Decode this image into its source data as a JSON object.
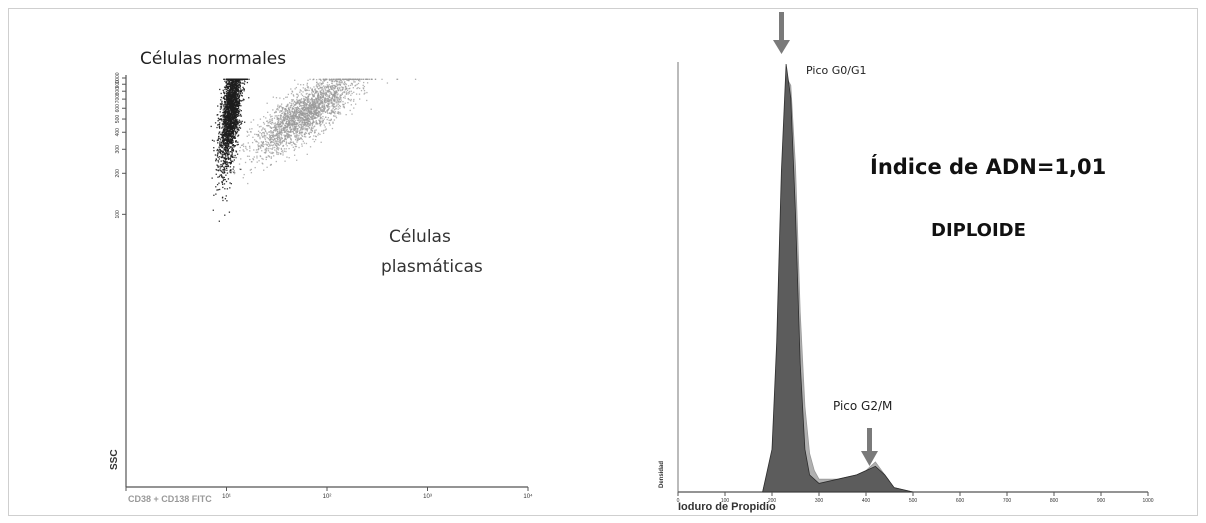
{
  "chart_data": [
    {
      "type": "scatter",
      "title": "",
      "xlabel": "CD38 + CD138 FITC",
      "ylabel": "SSC",
      "x_scale": "log",
      "y_scale": "log",
      "xlim": [
        1,
        10000
      ],
      "ylim": [
        1,
        1000
      ],
      "x_ticks": [
        "10¹",
        "10²",
        "10³",
        "10⁴"
      ],
      "y_ticks": [
        "100",
        "200",
        "300",
        "400",
        "500",
        "600",
        "700",
        "800",
        "900",
        "1000"
      ],
      "annotations": [
        {
          "text": "Células normales"
        },
        {
          "text_lines": [
            "Células",
            "plasmáticas"
          ]
        }
      ],
      "series": [
        {
          "color": "#1e1e1e",
          "center_x": 11,
          "center_y": 600,
          "spread_x": "narrow",
          "spread_y": "wide"
        },
        {
          "color": "#9a9a9a",
          "center_x": 60,
          "center_y": 550,
          "spread_x": "wide",
          "spread_y": "medium"
        }
      ]
    },
    {
      "type": "area",
      "xlabel": "Ioduro de Propidio",
      "ylabel": "Densidad",
      "xlim": [
        0,
        1000
      ],
      "x_ticks": [
        0,
        100,
        200,
        300,
        400,
        500,
        600,
        700,
        800,
        900,
        1000
      ],
      "peaks": [
        {
          "label": "Pico G0/G1",
          "x": 230
        },
        {
          "label": "Pico G2/M",
          "x": 420
        }
      ],
      "annotations": {
        "index": "Índice de ADN=1,01",
        "ploidy": "DIPLOIDE"
      },
      "series": [
        {
          "color": "#555555",
          "x": [
            180,
            200,
            210,
            220,
            230,
            240,
            250,
            260,
            270,
            280,
            300,
            340,
            380,
            400,
            420,
            440,
            460,
            500
          ],
          "y": [
            0,
            10,
            35,
            75,
            100,
            92,
            65,
            30,
            10,
            4,
            2,
            3,
            4,
            5,
            6,
            4,
            1,
            0
          ]
        },
        {
          "color": "#b0b0b0",
          "x": [
            180,
            200,
            210,
            220,
            230,
            240,
            250,
            260,
            270,
            280,
            290,
            300,
            340,
            380,
            400,
            420,
            440,
            460,
            500
          ],
          "y": [
            0,
            9,
            32,
            72,
            97,
            95,
            76,
            42,
            20,
            9,
            5,
            3,
            3,
            4,
            5,
            7,
            4,
            1,
            0
          ]
        }
      ]
    }
  ]
}
